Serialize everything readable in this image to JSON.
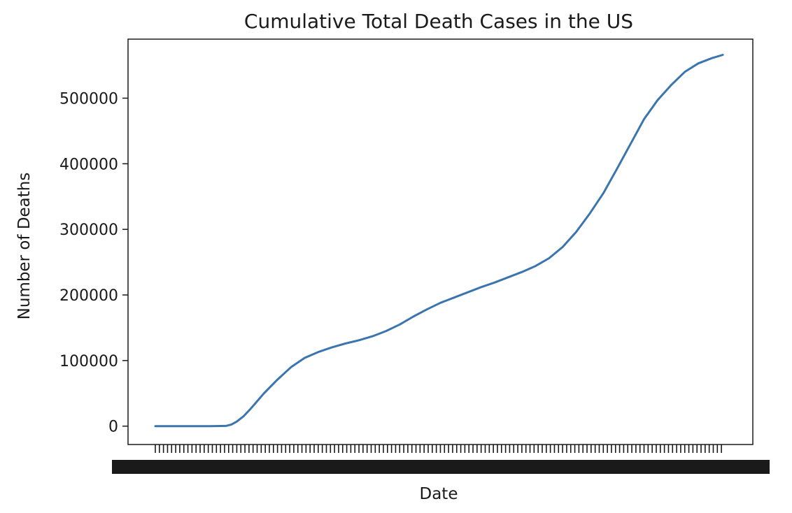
{
  "chart_data": {
    "type": "line",
    "title": "Cumulative Total Death Cases in the US",
    "xlabel": "Date",
    "ylabel": "Number of Deaths",
    "ylim": [
      -28000,
      590000
    ],
    "yticks": [
      0,
      100000,
      200000,
      300000,
      400000,
      500000
    ],
    "ytick_labels": [
      "0",
      "100000",
      "200000",
      "300000",
      "400000",
      "500000"
    ],
    "x_ticks_overlapping": true,
    "x_tick_count": 420,
    "grid": false,
    "series": [
      {
        "color": "#3b75af",
        "x_index": [
          0,
          18,
          40,
          52,
          56,
          60,
          65,
          70,
          75,
          80,
          90,
          100,
          110,
          120,
          130,
          140,
          150,
          160,
          170,
          180,
          190,
          200,
          210,
          220,
          230,
          240,
          250,
          260,
          270,
          280,
          290,
          300,
          310,
          320,
          330,
          340,
          350,
          360,
          370,
          380,
          390,
          400,
          410,
          418
        ],
        "values": [
          0,
          0,
          0,
          300,
          2500,
          7000,
          15000,
          26000,
          38000,
          50000,
          71000,
          90000,
          104000,
          113000,
          120000,
          126000,
          131000,
          137000,
          145000,
          155000,
          167000,
          178000,
          188000,
          196000,
          204000,
          212000,
          219000,
          227000,
          235000,
          244000,
          256000,
          273000,
          296000,
          324000,
          355000,
          392000,
          430000,
          468000,
          497000,
          520000,
          540000,
          553000,
          561000,
          566000
        ]
      }
    ]
  }
}
